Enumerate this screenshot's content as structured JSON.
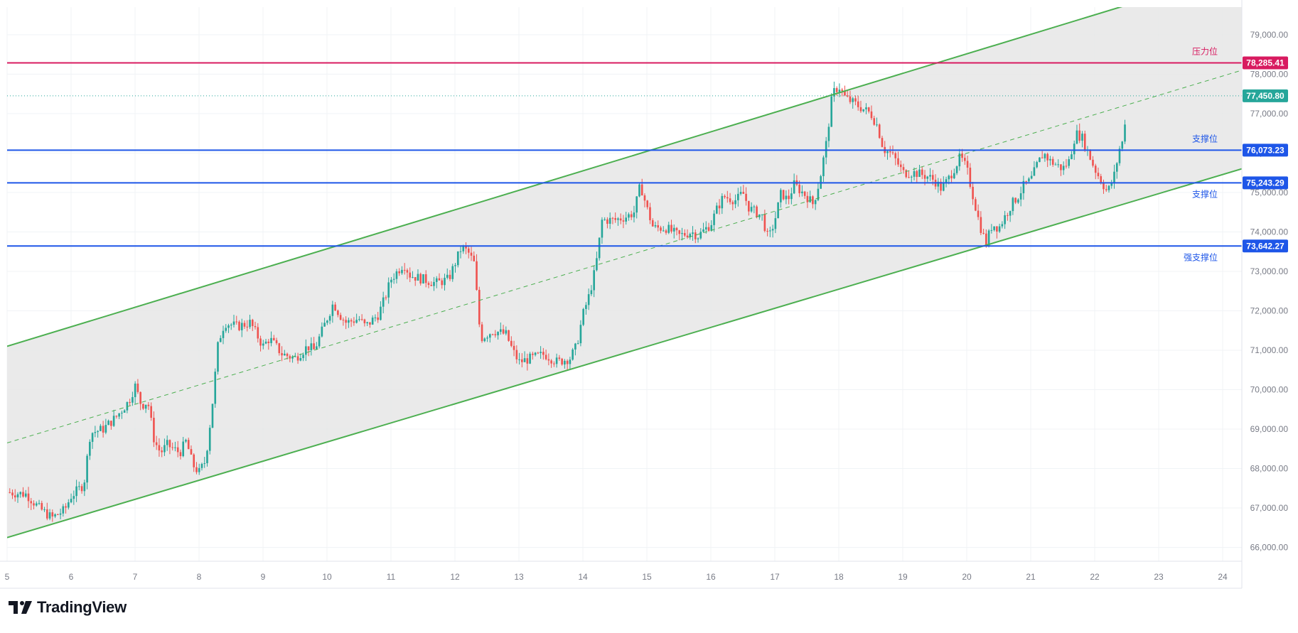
{
  "brand": {
    "name": "TradingView",
    "logo_icon": "tradingview-logo-icon"
  },
  "colors": {
    "resistance": "#d81b60",
    "support": "#1e56e8",
    "channel": "#4caf50",
    "channel_fill": "#e6e6e6",
    "up": "#26a69a",
    "down": "#ef5350",
    "grid": "#f0f3f6",
    "axis_text": "#787b86",
    "last_price_bg": "#26a69a"
  },
  "chart_data": {
    "type": "candlestick",
    "symbol": "",
    "x_axis": {
      "label": "",
      "tick_labels": [
        "5",
        "6",
        "7",
        "8",
        "9",
        "10",
        "11",
        "12",
        "13",
        "14",
        "15",
        "16",
        "17",
        "18",
        "19",
        "20",
        "21",
        "22",
        "23",
        "24"
      ],
      "range": [
        5.0,
        24.3
      ]
    },
    "y_axis": {
      "label": "",
      "tick_labels": [
        "66,000.00",
        "67,000.00",
        "68,000.00",
        "69,000.00",
        "70,000.00",
        "71,000.00",
        "72,000.00",
        "73,000.00",
        "74,000.00",
        "75,000.00",
        "76,000.00",
        "77,000.00",
        "78,000.00",
        "79,000.00"
      ],
      "range": [
        65650,
        79700
      ]
    },
    "grid": true,
    "horizontal_levels": [
      {
        "label": "压力位",
        "price": 78285.41,
        "price_label": "78,285.41",
        "kind": "resistance"
      },
      {
        "label": "支撑位",
        "price": 76073.23,
        "price_label": "76,073.23",
        "kind": "support"
      },
      {
        "label": "支撑位",
        "price": 75243.29,
        "price_label": "75,243.29",
        "kind": "support"
      },
      {
        "label": "强支撑位",
        "price": 73642.27,
        "price_label": "73,642.27",
        "kind": "support"
      }
    ],
    "last_price": {
      "price": 77450.8,
      "price_label": "77,450.80"
    },
    "channel": {
      "upper": [
        [
          5.0,
          71100
        ],
        [
          22.6,
          79800
        ]
      ],
      "middle": [
        [
          5.0,
          68650
        ],
        [
          24.3,
          78100
        ]
      ],
      "lower": [
        [
          5.0,
          66250
        ],
        [
          24.3,
          75600
        ]
      ]
    },
    "close_path": [
      [
        5.0,
        67400
      ],
      [
        5.3,
        67350
      ],
      [
        5.5,
        67000
      ],
      [
        5.7,
        66750
      ],
      [
        5.9,
        66950
      ],
      [
        6.0,
        67300
      ],
      [
        6.2,
        67600
      ],
      [
        6.3,
        68900
      ],
      [
        6.5,
        69000
      ],
      [
        6.7,
        69300
      ],
      [
        6.9,
        69700
      ],
      [
        7.0,
        70100
      ],
      [
        7.1,
        69600
      ],
      [
        7.2,
        69700
      ],
      [
        7.3,
        68700
      ],
      [
        7.4,
        68400
      ],
      [
        7.5,
        68600
      ],
      [
        7.7,
        68400
      ],
      [
        7.8,
        68700
      ],
      [
        7.9,
        68100
      ],
      [
        8.0,
        67900
      ],
      [
        8.1,
        68200
      ],
      [
        8.2,
        69500
      ],
      [
        8.3,
        71200
      ],
      [
        8.4,
        71700
      ],
      [
        8.6,
        71600
      ],
      [
        8.8,
        71700
      ],
      [
        8.9,
        71400
      ],
      [
        9.0,
        71100
      ],
      [
        9.1,
        71300
      ],
      [
        9.3,
        70900
      ],
      [
        9.5,
        70800
      ],
      [
        9.7,
        71100
      ],
      [
        9.8,
        71000
      ],
      [
        10.0,
        71800
      ],
      [
        10.1,
        72200
      ],
      [
        10.2,
        71900
      ],
      [
        10.3,
        71700
      ],
      [
        10.5,
        71800
      ],
      [
        10.6,
        71600
      ],
      [
        10.8,
        71900
      ],
      [
        10.9,
        72300
      ],
      [
        11.0,
        72800
      ],
      [
        11.2,
        73200
      ],
      [
        11.3,
        72900
      ],
      [
        11.5,
        72800
      ],
      [
        11.7,
        72700
      ],
      [
        11.9,
        72800
      ],
      [
        12.0,
        73200
      ],
      [
        12.1,
        73600
      ],
      [
        12.2,
        73500
      ],
      [
        12.3,
        73200
      ],
      [
        12.4,
        71300
      ],
      [
        12.6,
        71500
      ],
      [
        12.8,
        71400
      ],
      [
        12.9,
        71000
      ],
      [
        13.0,
        70700
      ],
      [
        13.2,
        70800
      ],
      [
        13.4,
        70900
      ],
      [
        13.6,
        70700
      ],
      [
        13.8,
        70800
      ],
      [
        13.9,
        71100
      ],
      [
        14.0,
        71900
      ],
      [
        14.1,
        72400
      ],
      [
        14.2,
        73100
      ],
      [
        14.3,
        74300
      ],
      [
        14.5,
        74300
      ],
      [
        14.7,
        74400
      ],
      [
        14.8,
        74500
      ],
      [
        14.9,
        75200
      ],
      [
        15.0,
        74600
      ],
      [
        15.1,
        74100
      ],
      [
        15.3,
        74100
      ],
      [
        15.5,
        73900
      ],
      [
        15.7,
        74000
      ],
      [
        15.8,
        73900
      ],
      [
        16.0,
        74200
      ],
      [
        16.1,
        74600
      ],
      [
        16.2,
        74900
      ],
      [
        16.4,
        74800
      ],
      [
        16.5,
        75000
      ],
      [
        16.6,
        74600
      ],
      [
        16.8,
        74400
      ],
      [
        16.9,
        73800
      ],
      [
        17.0,
        74300
      ],
      [
        17.1,
        75000
      ],
      [
        17.2,
        74800
      ],
      [
        17.3,
        75200
      ],
      [
        17.5,
        74900
      ],
      [
        17.6,
        74700
      ],
      [
        17.7,
        75300
      ],
      [
        17.8,
        76200
      ],
      [
        17.9,
        77500
      ],
      [
        18.0,
        77700
      ],
      [
        18.1,
        77400
      ],
      [
        18.3,
        77200
      ],
      [
        18.4,
        77100
      ],
      [
        18.5,
        77000
      ],
      [
        18.6,
        76700
      ],
      [
        18.7,
        76100
      ],
      [
        18.8,
        76000
      ],
      [
        18.9,
        75800
      ],
      [
        19.0,
        75500
      ],
      [
        19.2,
        75500
      ],
      [
        19.4,
        75400
      ],
      [
        19.5,
        75300
      ],
      [
        19.6,
        75100
      ],
      [
        19.7,
        75300
      ],
      [
        19.8,
        75600
      ],
      [
        19.9,
        75900
      ],
      [
        20.0,
        75600
      ],
      [
        20.1,
        74900
      ],
      [
        20.2,
        74200
      ],
      [
        20.3,
        73700
      ],
      [
        20.4,
        74200
      ],
      [
        20.5,
        74100
      ],
      [
        20.6,
        74400
      ],
      [
        20.7,
        74700
      ],
      [
        20.8,
        74900
      ],
      [
        20.9,
        75200
      ],
      [
        21.0,
        75300
      ],
      [
        21.1,
        75700
      ],
      [
        21.2,
        76000
      ],
      [
        21.3,
        75800
      ],
      [
        21.4,
        75700
      ],
      [
        21.5,
        75600
      ],
      [
        21.6,
        75800
      ],
      [
        21.7,
        76500
      ],
      [
        21.8,
        76400
      ],
      [
        21.9,
        76000
      ],
      [
        22.0,
        75600
      ],
      [
        22.1,
        75300
      ],
      [
        22.2,
        75000
      ],
      [
        22.3,
        75400
      ],
      [
        22.4,
        76200
      ],
      [
        22.45,
        76300
      ],
      [
        22.5,
        77450
      ]
    ]
  }
}
